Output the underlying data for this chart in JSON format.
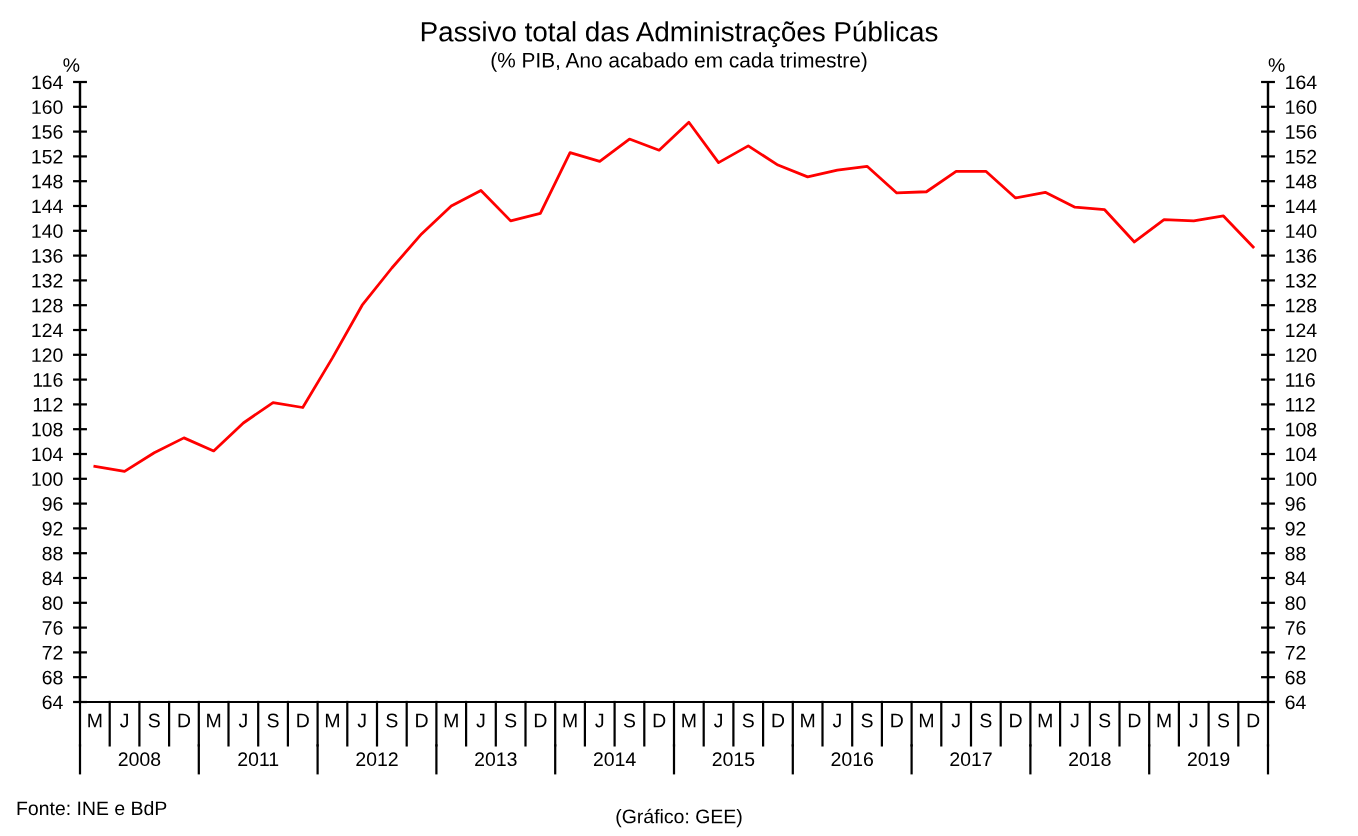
{
  "chart_data": {
    "type": "line",
    "title": "Passivo total das Administrações Públicas",
    "subtitle": "(% PIB, Ano acabado em cada trimestre)",
    "ylabel": "%",
    "y2label": "%",
    "categories": [
      "M",
      "J",
      "S",
      "D",
      "M",
      "J",
      "S",
      "D",
      "M",
      "J",
      "S",
      "D",
      "M",
      "J",
      "S",
      "D",
      "M",
      "J",
      "S",
      "D",
      "M",
      "J",
      "S",
      "D",
      "M",
      "J",
      "S",
      "D",
      "M",
      "J",
      "S",
      "D",
      "M",
      "J",
      "S",
      "D",
      "M",
      "J",
      "S",
      "D"
    ],
    "series": [
      {
        "color": "#ff0000",
        "values": [
          102.0,
          101.2,
          104.2,
          106.6,
          104.5,
          109.0,
          112.3,
          111.5,
          119.5,
          128.0,
          134.0,
          139.5,
          144.0,
          146.5,
          141.6,
          142.8,
          152.6,
          151.2,
          154.8,
          153.0,
          157.5,
          151.0,
          153.7,
          150.6,
          148.7,
          149.8,
          150.4,
          146.1,
          146.3,
          149.6,
          149.6,
          145.3,
          146.2,
          143.8,
          143.4,
          138.2,
          141.8,
          141.6,
          142.4,
          137.4
        ]
      }
    ],
    "ylim": [
      64,
      164
    ],
    "yticks": [
      64,
      68,
      72,
      76,
      80,
      84,
      88,
      92,
      96,
      100,
      104,
      108,
      112,
      116,
      120,
      124,
      128,
      132,
      136,
      140,
      144,
      148,
      152,
      156,
      160,
      164
    ],
    "y2lim": [
      64,
      164
    ],
    "y2ticks": [
      64,
      68,
      72,
      76,
      80,
      84,
      88,
      92,
      96,
      100,
      104,
      108,
      112,
      116,
      120,
      124,
      128,
      132,
      136,
      140,
      144,
      148,
      152,
      156,
      160,
      164
    ],
    "annotations": [
      "Fonte: INE e BdP",
      "(Gráfico: GEE)",
      "2008",
      "2011",
      "2012",
      "2013",
      "2014",
      "2015",
      "2016",
      "2017",
      "2018",
      "2019"
    ],
    "grid": false,
    "legend": false,
    "marker": "none",
    "line_style": "solid"
  }
}
